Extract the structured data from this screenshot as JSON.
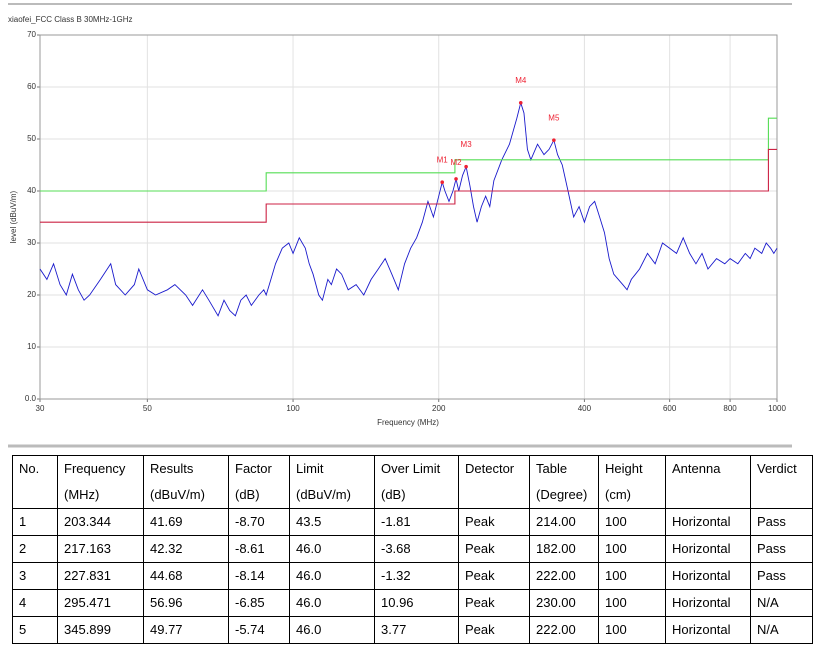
{
  "chart_data": {
    "type": "line",
    "title": "xiaofei_FCC Class B 30MHz-1GHz",
    "x_label": "Frequency (MHz)",
    "y_label": "level (dBuV/m)",
    "x_scale": "log",
    "grid": true,
    "xlim": [
      30,
      1000
    ],
    "xticks": [
      30,
      50,
      100,
      200,
      400,
      600,
      800,
      1000
    ],
    "ylim": [
      0,
      70
    ],
    "yticks": [
      {
        "value": 0,
        "label": "0.0"
      },
      10,
      20,
      30,
      40,
      50,
      60,
      70
    ],
    "series": [
      {
        "color": "#1a1acc",
        "x": [
          30,
          31,
          32,
          33,
          34,
          35,
          36,
          37,
          38,
          40,
          42,
          43,
          45,
          47,
          48,
          50,
          52,
          55,
          57,
          60,
          62,
          65,
          67,
          70,
          72,
          74,
          76,
          78,
          80,
          82,
          85,
          87,
          88,
          90,
          92,
          95,
          98,
          100,
          103,
          106,
          108,
          110,
          113,
          115,
          118,
          120,
          123,
          126,
          130,
          135,
          140,
          145,
          150,
          155,
          160,
          165,
          170,
          175,
          180,
          185,
          190,
          195,
          200,
          203.344,
          206,
          210,
          214,
          217.163,
          220,
          224,
          227.831,
          232,
          236,
          240,
          245,
          250,
          255,
          260,
          270,
          280,
          290,
          295.471,
          300,
          305,
          310,
          320,
          330,
          338,
          345.899,
          352,
          360,
          370,
          380,
          390,
          400,
          410,
          420,
          430,
          440,
          450,
          460,
          470,
          480,
          490,
          500,
          510,
          520,
          540,
          560,
          580,
          600,
          620,
          640,
          660,
          680,
          700,
          720,
          750,
          780,
          800,
          830,
          860,
          880,
          900,
          930,
          950,
          970,
          985,
          1000
        ],
        "values": [
          25,
          23,
          26,
          22,
          20,
          24,
          21,
          19,
          20,
          23,
          26,
          22,
          20,
          22,
          25,
          21,
          20,
          21,
          22,
          20,
          18,
          21,
          19,
          16,
          19,
          17,
          16,
          19,
          20,
          18,
          20,
          21,
          20,
          23,
          26,
          29,
          30,
          28,
          31,
          29,
          26,
          24,
          20,
          19,
          23,
          22,
          25,
          24,
          21,
          22,
          20,
          23,
          25,
          27,
          24,
          21,
          26,
          29,
          31,
          34,
          38,
          35,
          39,
          41.69,
          40,
          38,
          40,
          42.32,
          40,
          43,
          44.68,
          41,
          37,
          34,
          37,
          39,
          37,
          42,
          46,
          49,
          54,
          56.96,
          55,
          48,
          46,
          49,
          47,
          48,
          49.77,
          47,
          45,
          40,
          35,
          37,
          34,
          37,
          38,
          35,
          32,
          27,
          24,
          23,
          22,
          21,
          23,
          24,
          25,
          28,
          26,
          30,
          29,
          28,
          31,
          28,
          26,
          28,
          25,
          27,
          26,
          27,
          26,
          28,
          27,
          29,
          28,
          30,
          29,
          28,
          29
        ]
      },
      {
        "color": "#55dd55",
        "x": [
          30,
          88,
          88,
          216,
          216,
          960,
          960,
          1000
        ],
        "values": [
          40,
          40,
          43.5,
          43.5,
          46,
          46,
          54,
          54
        ]
      },
      {
        "color": "#cc2244",
        "x": [
          30,
          88,
          88,
          216,
          216,
          960,
          960,
          1000
        ],
        "values": [
          34,
          34,
          37.5,
          37.5,
          40,
          40,
          48,
          48
        ]
      }
    ],
    "markers": {
      "color": "#ee2233",
      "labels": [
        "M1",
        "M2",
        "M3",
        "M4",
        "M5"
      ],
      "x": [
        203.344,
        217.163,
        227.831,
        295.471,
        345.899
      ],
      "values": [
        41.69,
        42.32,
        44.68,
        56.96,
        49.77
      ]
    }
  },
  "table": {
    "header": [
      [
        "No."
      ],
      [
        "Frequency",
        "(MHz)"
      ],
      [
        "Results",
        "(dBuV/m)"
      ],
      [
        "Factor",
        "(dB)"
      ],
      [
        "Limit",
        "(dBuV/m)"
      ],
      [
        "Over Limit",
        "(dB)"
      ],
      [
        "Detector"
      ],
      [
        "Table",
        "(Degree)"
      ],
      [
        "Height",
        "(cm)"
      ],
      [
        "Antenna"
      ],
      [
        "Verdict"
      ]
    ],
    "rows": [
      [
        "1",
        "203.344",
        "41.69",
        "-8.70",
        "43.5",
        "-1.81",
        "Peak",
        "214.00",
        "100",
        "Horizontal",
        "Pass"
      ],
      [
        "2",
        "217.163",
        "42.32",
        "-8.61",
        "46.0",
        "-3.68",
        "Peak",
        "182.00",
        "100",
        "Horizontal",
        "Pass"
      ],
      [
        "3",
        "227.831",
        "44.68",
        "-8.14",
        "46.0",
        "-1.32",
        "Peak",
        "222.00",
        "100",
        "Horizontal",
        "Pass"
      ],
      [
        "4",
        "295.471",
        "56.96",
        "-6.85",
        "46.0",
        "10.96",
        "Peak",
        "230.00",
        "100",
        "Horizontal",
        "N/A"
      ],
      [
        "5",
        "345.899",
        "49.77",
        "-5.74",
        "46.0",
        "3.77",
        "Peak",
        "222.00",
        "100",
        "Horizontal",
        "N/A"
      ]
    ]
  }
}
